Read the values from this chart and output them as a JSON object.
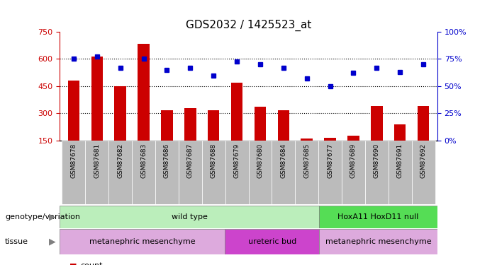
{
  "title": "GDS2032 / 1425523_at",
  "samples": [
    "GSM87678",
    "GSM87681",
    "GSM87682",
    "GSM87683",
    "GSM87686",
    "GSM87687",
    "GSM87688",
    "GSM87679",
    "GSM87680",
    "GSM87684",
    "GSM87685",
    "GSM87677",
    "GSM87689",
    "GSM87690",
    "GSM87691",
    "GSM87692"
  ],
  "counts": [
    480,
    615,
    450,
    685,
    315,
    330,
    315,
    470,
    335,
    315,
    160,
    165,
    175,
    340,
    240,
    340
  ],
  "percentiles": [
    75,
    77,
    67,
    75,
    65,
    67,
    60,
    73,
    70,
    67,
    57,
    50,
    62,
    67,
    63,
    70
  ],
  "ylim_left": [
    150,
    750
  ],
  "ylim_right": [
    0,
    100
  ],
  "yticks_left": [
    150,
    300,
    450,
    600,
    750
  ],
  "yticks_right": [
    0,
    25,
    50,
    75,
    100
  ],
  "bar_color": "#cc0000",
  "dot_color": "#0000cc",
  "bar_baseline": 150,
  "genotype_groups": [
    {
      "label": "wild type",
      "start": 0,
      "end": 11,
      "color": "#bbeebb"
    },
    {
      "label": "HoxA11 HoxD11 null",
      "start": 11,
      "end": 16,
      "color": "#55dd55"
    }
  ],
  "tissue_groups": [
    {
      "label": "metanephric mesenchyme",
      "start": 0,
      "end": 7,
      "color": "#ddaadd"
    },
    {
      "label": "ureteric bud",
      "start": 7,
      "end": 11,
      "color": "#cc44cc"
    },
    {
      "label": "metanephric mesenchyme",
      "start": 11,
      "end": 16,
      "color": "#ddaadd"
    }
  ],
  "legend_count_color": "#cc0000",
  "legend_pct_color": "#0000cc",
  "bg_color": "#ffffff",
  "tick_label_bg": "#bbbbbb",
  "grid_color": "#000000",
  "axis_left_color": "#cc0000",
  "axis_right_color": "#0000cc",
  "gridlines_at": [
    300,
    450,
    600
  ]
}
